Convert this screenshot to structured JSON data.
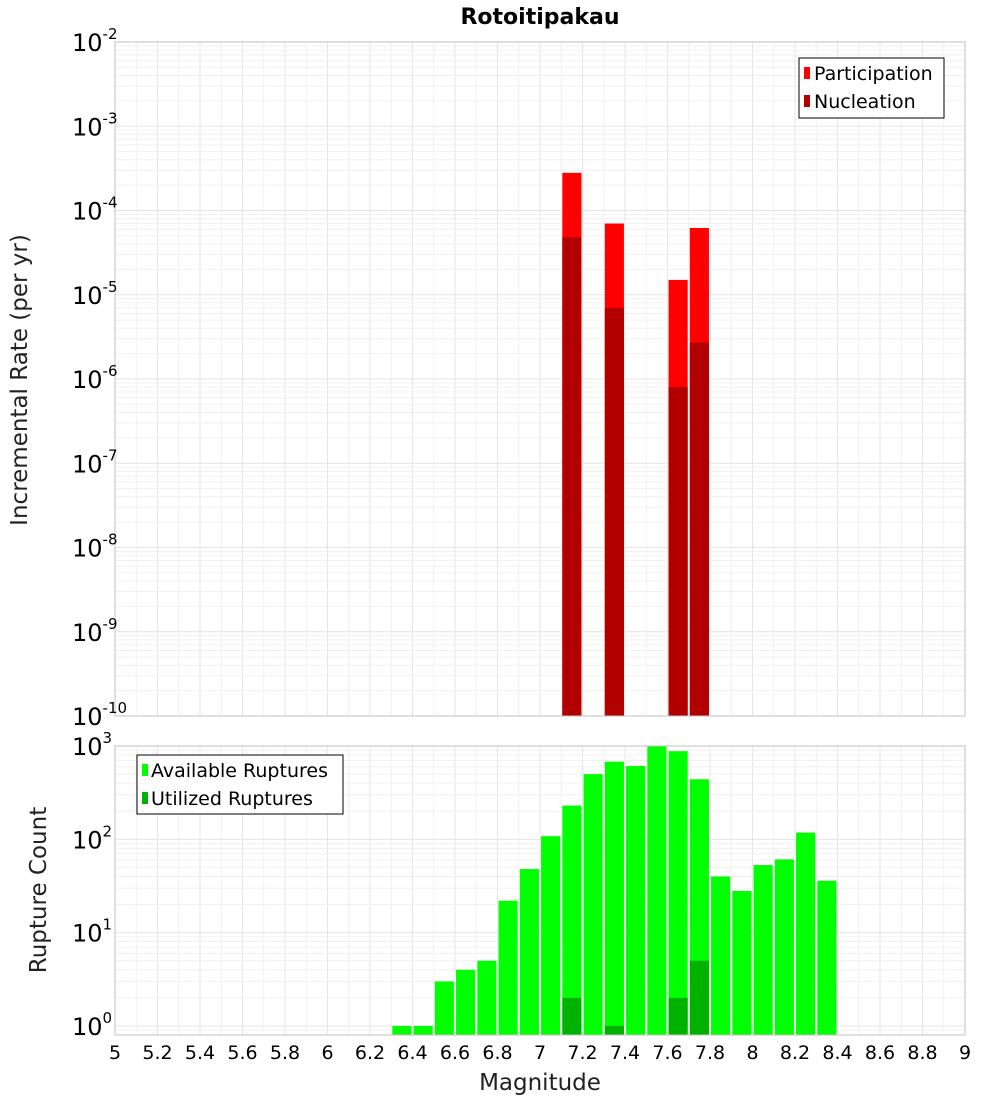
{
  "chart_data": [
    {
      "type": "bar",
      "title": "Rotoitipakau",
      "ylabel": "Incremental Rate (per yr)",
      "xlabel": "",
      "yscale": "log",
      "ylim": [
        1e-10,
        0.01
      ],
      "xlim": [
        5,
        9
      ],
      "grid": true,
      "legend_position": "top-right",
      "bar_width": 0.09,
      "series": [
        {
          "name": "Participation",
          "color": "#ff0000",
          "points": [
            {
              "x": 7.15,
              "y": 0.00028
            },
            {
              "x": 7.35,
              "y": 7e-05
            },
            {
              "x": 7.65,
              "y": 1.5e-05
            },
            {
              "x": 7.75,
              "y": 6.2e-05
            }
          ]
        },
        {
          "name": "Nucleation",
          "color": "#b20000",
          "points": [
            {
              "x": 7.15,
              "y": 4.8e-05
            },
            {
              "x": 7.35,
              "y": 7e-06
            },
            {
              "x": 7.65,
              "y": 8e-07
            },
            {
              "x": 7.75,
              "y": 2.7e-06
            }
          ]
        }
      ]
    },
    {
      "type": "bar",
      "title": "",
      "ylabel": "Rupture Count",
      "xlabel": "Magnitude",
      "yscale": "log",
      "ylim": [
        0.8,
        1000
      ],
      "xlim": [
        5,
        9
      ],
      "grid": true,
      "legend_position": "top-left",
      "bar_width": 0.09,
      "x_ticks": [
        "5",
        "5.2",
        "5.4",
        "5.6",
        "5.8",
        "6",
        "6.2",
        "6.4",
        "6.6",
        "6.8",
        "7",
        "7.2",
        "7.4",
        "7.6",
        "7.8",
        "8",
        "8.2",
        "8.4",
        "8.6",
        "8.8",
        "9"
      ],
      "series": [
        {
          "name": "Available Ruptures",
          "color": "#00ff00",
          "points": [
            {
              "x": 6.35,
              "y": 1
            },
            {
              "x": 6.45,
              "y": 1
            },
            {
              "x": 6.55,
              "y": 3
            },
            {
              "x": 6.65,
              "y": 4
            },
            {
              "x": 6.75,
              "y": 5
            },
            {
              "x": 6.85,
              "y": 22
            },
            {
              "x": 6.95,
              "y": 48
            },
            {
              "x": 7.05,
              "y": 108
            },
            {
              "x": 7.15,
              "y": 230
            },
            {
              "x": 7.25,
              "y": 500
            },
            {
              "x": 7.35,
              "y": 680
            },
            {
              "x": 7.45,
              "y": 610
            },
            {
              "x": 7.55,
              "y": 1000
            },
            {
              "x": 7.65,
              "y": 880
            },
            {
              "x": 7.75,
              "y": 440
            },
            {
              "x": 7.85,
              "y": 40
            },
            {
              "x": 7.95,
              "y": 28
            },
            {
              "x": 8.05,
              "y": 53
            },
            {
              "x": 8.15,
              "y": 61
            },
            {
              "x": 8.25,
              "y": 118
            },
            {
              "x": 8.35,
              "y": 36
            }
          ]
        },
        {
          "name": "Utilized Ruptures",
          "color": "#00b200",
          "points": [
            {
              "x": 7.15,
              "y": 2
            },
            {
              "x": 7.35,
              "y": 1
            },
            {
              "x": 7.65,
              "y": 2
            },
            {
              "x": 7.75,
              "y": 5
            }
          ]
        }
      ]
    }
  ],
  "top_y_ticks": [
    {
      "base": "10",
      "exp": "-2",
      "value": 0.01
    },
    {
      "base": "10",
      "exp": "-3",
      "value": 0.001
    },
    {
      "base": "10",
      "exp": "-4",
      "value": 0.0001
    },
    {
      "base": "10",
      "exp": "-5",
      "value": 1e-05
    },
    {
      "base": "10",
      "exp": "-6",
      "value": 1e-06
    },
    {
      "base": "10",
      "exp": "-7",
      "value": 1e-07
    },
    {
      "base": "10",
      "exp": "-8",
      "value": 1e-08
    },
    {
      "base": "10",
      "exp": "-9",
      "value": 1e-09
    },
    {
      "base": "10",
      "exp": "-10",
      "value": 1e-10
    }
  ],
  "bottom_y_ticks": [
    {
      "base": "10",
      "exp": "3",
      "value": 1000
    },
    {
      "base": "10",
      "exp": "2",
      "value": 100
    },
    {
      "base": "10",
      "exp": "1",
      "value": 10
    },
    {
      "base": "10",
      "exp": "0",
      "value": 1
    }
  ]
}
